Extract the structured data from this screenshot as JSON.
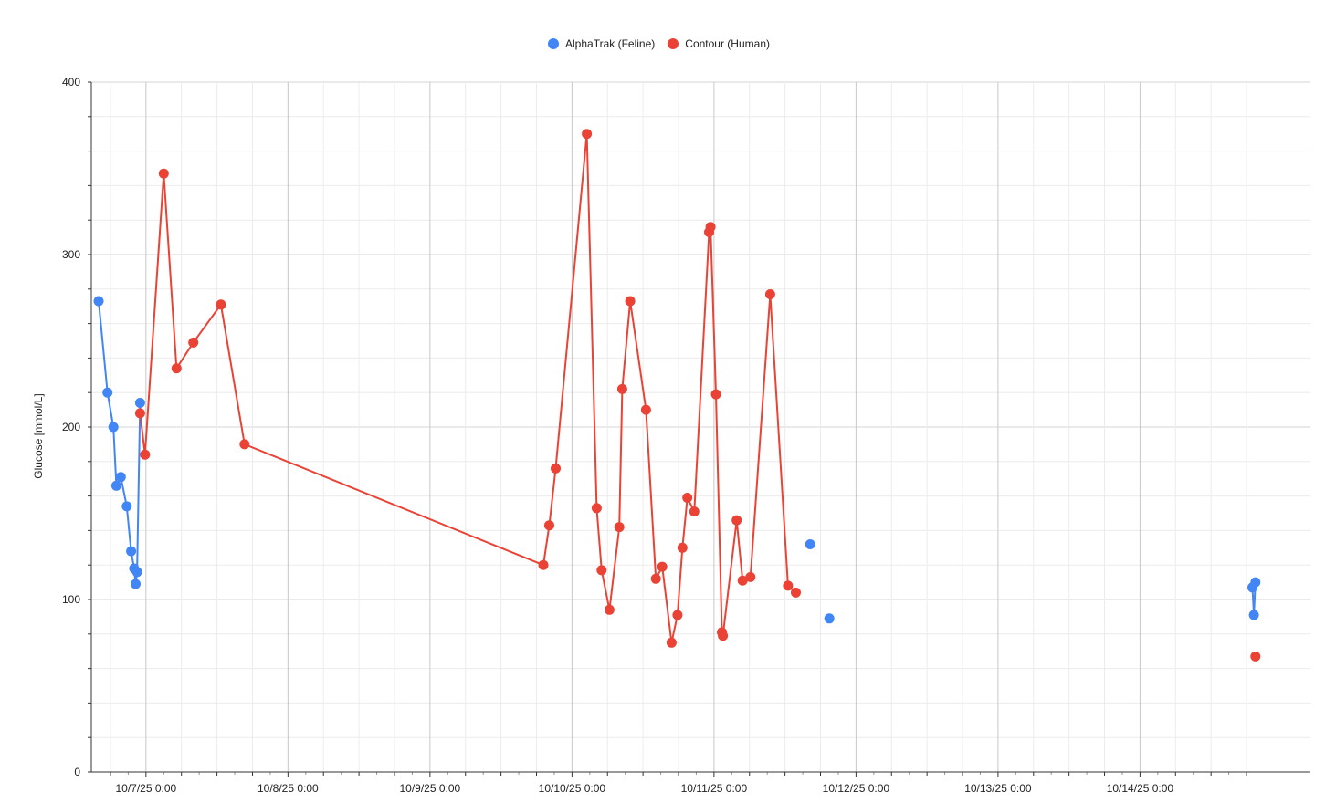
{
  "chart_data": {
    "type": "line",
    "title": "",
    "xlabel": "",
    "ylabel": "Glucose [mmol/L]",
    "ylim": [
      0,
      400
    ],
    "yticks": [
      0,
      100,
      200,
      300,
      400
    ],
    "xlim": [
      "2025-10-06 16:00",
      "2025-10-14 20:00"
    ],
    "xticks": [
      {
        "at": "2025-10-07 00:00",
        "label": "10/7/25 0:00"
      },
      {
        "at": "2025-10-08 00:00",
        "label": "10/8/25 0:00"
      },
      {
        "at": "2025-10-09 00:00",
        "label": "10/9/25 0:00"
      },
      {
        "at": "2025-10-10 00:00",
        "label": "10/10/25 0:00"
      },
      {
        "at": "2025-10-11 00:00",
        "label": "10/11/25 0:00"
      },
      {
        "at": "2025-10-12 00:00",
        "label": "10/12/25 0:00"
      },
      {
        "at": "2025-10-13 00:00",
        "label": "10/13/25 0:00"
      },
      {
        "at": "2025-10-14 00:00",
        "label": "10/14/25 0:00"
      }
    ],
    "grid": true,
    "legend_position": "top",
    "series": [
      {
        "name": "AlphaTrak (Feline)",
        "color": "#4285f4",
        "segments": [
          [
            {
              "x": "2025-10-06 16:00",
              "y": 273
            },
            {
              "x": "2025-10-06 17:30",
              "y": 220
            },
            {
              "x": "2025-10-06 18:30",
              "y": 200
            },
            {
              "x": "2025-10-06 19:00",
              "y": 166
            },
            {
              "x": "2025-10-06 19:45",
              "y": 171
            },
            {
              "x": "2025-10-06 20:45",
              "y": 154
            },
            {
              "x": "2025-10-06 21:30",
              "y": 128
            },
            {
              "x": "2025-10-06 22:00",
              "y": 118
            },
            {
              "x": "2025-10-06 22:15",
              "y": 109
            },
            {
              "x": "2025-10-06 22:30",
              "y": 116
            },
            {
              "x": "2025-10-06 23:00",
              "y": 214
            }
          ],
          [
            {
              "x": "2025-10-11 16:15",
              "y": 132
            }
          ],
          [
            {
              "x": "2025-10-11 19:30",
              "y": 89
            }
          ],
          [
            {
              "x": "2025-10-14 19:00",
              "y": 107
            },
            {
              "x": "2025-10-14 19:15",
              "y": 91
            },
            {
              "x": "2025-10-14 19:30",
              "y": 110
            }
          ]
        ]
      },
      {
        "name": "Contour (Human)",
        "color": "#ea4335",
        "segments": [
          [
            {
              "x": "2025-10-06 23:00",
              "y": 208
            },
            {
              "x": "2025-10-06 23:50",
              "y": 184
            },
            {
              "x": "2025-10-07 03:00",
              "y": 347
            },
            {
              "x": "2025-10-07 05:10",
              "y": 234
            },
            {
              "x": "2025-10-07 08:00",
              "y": 249
            },
            {
              "x": "2025-10-07 12:40",
              "y": 271
            },
            {
              "x": "2025-10-07 16:40",
              "y": 190
            },
            {
              "x": "2025-10-09 19:10",
              "y": 120
            },
            {
              "x": "2025-10-09 20:10",
              "y": 143
            },
            {
              "x": "2025-10-09 21:15",
              "y": 176
            },
            {
              "x": "2025-10-10 02:30",
              "y": 370
            },
            {
              "x": "2025-10-10 04:10",
              "y": 153
            },
            {
              "x": "2025-10-10 05:00",
              "y": 117
            },
            {
              "x": "2025-10-10 06:20",
              "y": 94
            },
            {
              "x": "2025-10-10 08:00",
              "y": 142
            },
            {
              "x": "2025-10-10 08:30",
              "y": 222
            },
            {
              "x": "2025-10-10 09:50",
              "y": 273
            },
            {
              "x": "2025-10-10 12:30",
              "y": 210
            },
            {
              "x": "2025-10-10 14:10",
              "y": 112
            },
            {
              "x": "2025-10-10 15:15",
              "y": 119
            },
            {
              "x": "2025-10-10 16:50",
              "y": 75
            },
            {
              "x": "2025-10-10 17:50",
              "y": 91
            },
            {
              "x": "2025-10-10 18:40",
              "y": 130
            },
            {
              "x": "2025-10-10 19:30",
              "y": 159
            },
            {
              "x": "2025-10-10 20:40",
              "y": 151
            },
            {
              "x": "2025-10-10 23:10",
              "y": 313
            },
            {
              "x": "2025-10-10 23:25",
              "y": 316
            },
            {
              "x": "2025-10-11 00:20",
              "y": 219
            },
            {
              "x": "2025-10-11 01:20",
              "y": 81
            },
            {
              "x": "2025-10-11 01:30",
              "y": 79
            },
            {
              "x": "2025-10-11 03:50",
              "y": 146
            },
            {
              "x": "2025-10-11 04:50",
              "y": 111
            },
            {
              "x": "2025-10-11 06:10",
              "y": 113
            },
            {
              "x": "2025-10-11 09:30",
              "y": 277
            },
            {
              "x": "2025-10-11 12:30",
              "y": 108
            },
            {
              "x": "2025-10-11 13:50",
              "y": 104
            }
          ],
          [
            {
              "x": "2025-10-14 19:30",
              "y": 67
            }
          ]
        ]
      }
    ]
  }
}
